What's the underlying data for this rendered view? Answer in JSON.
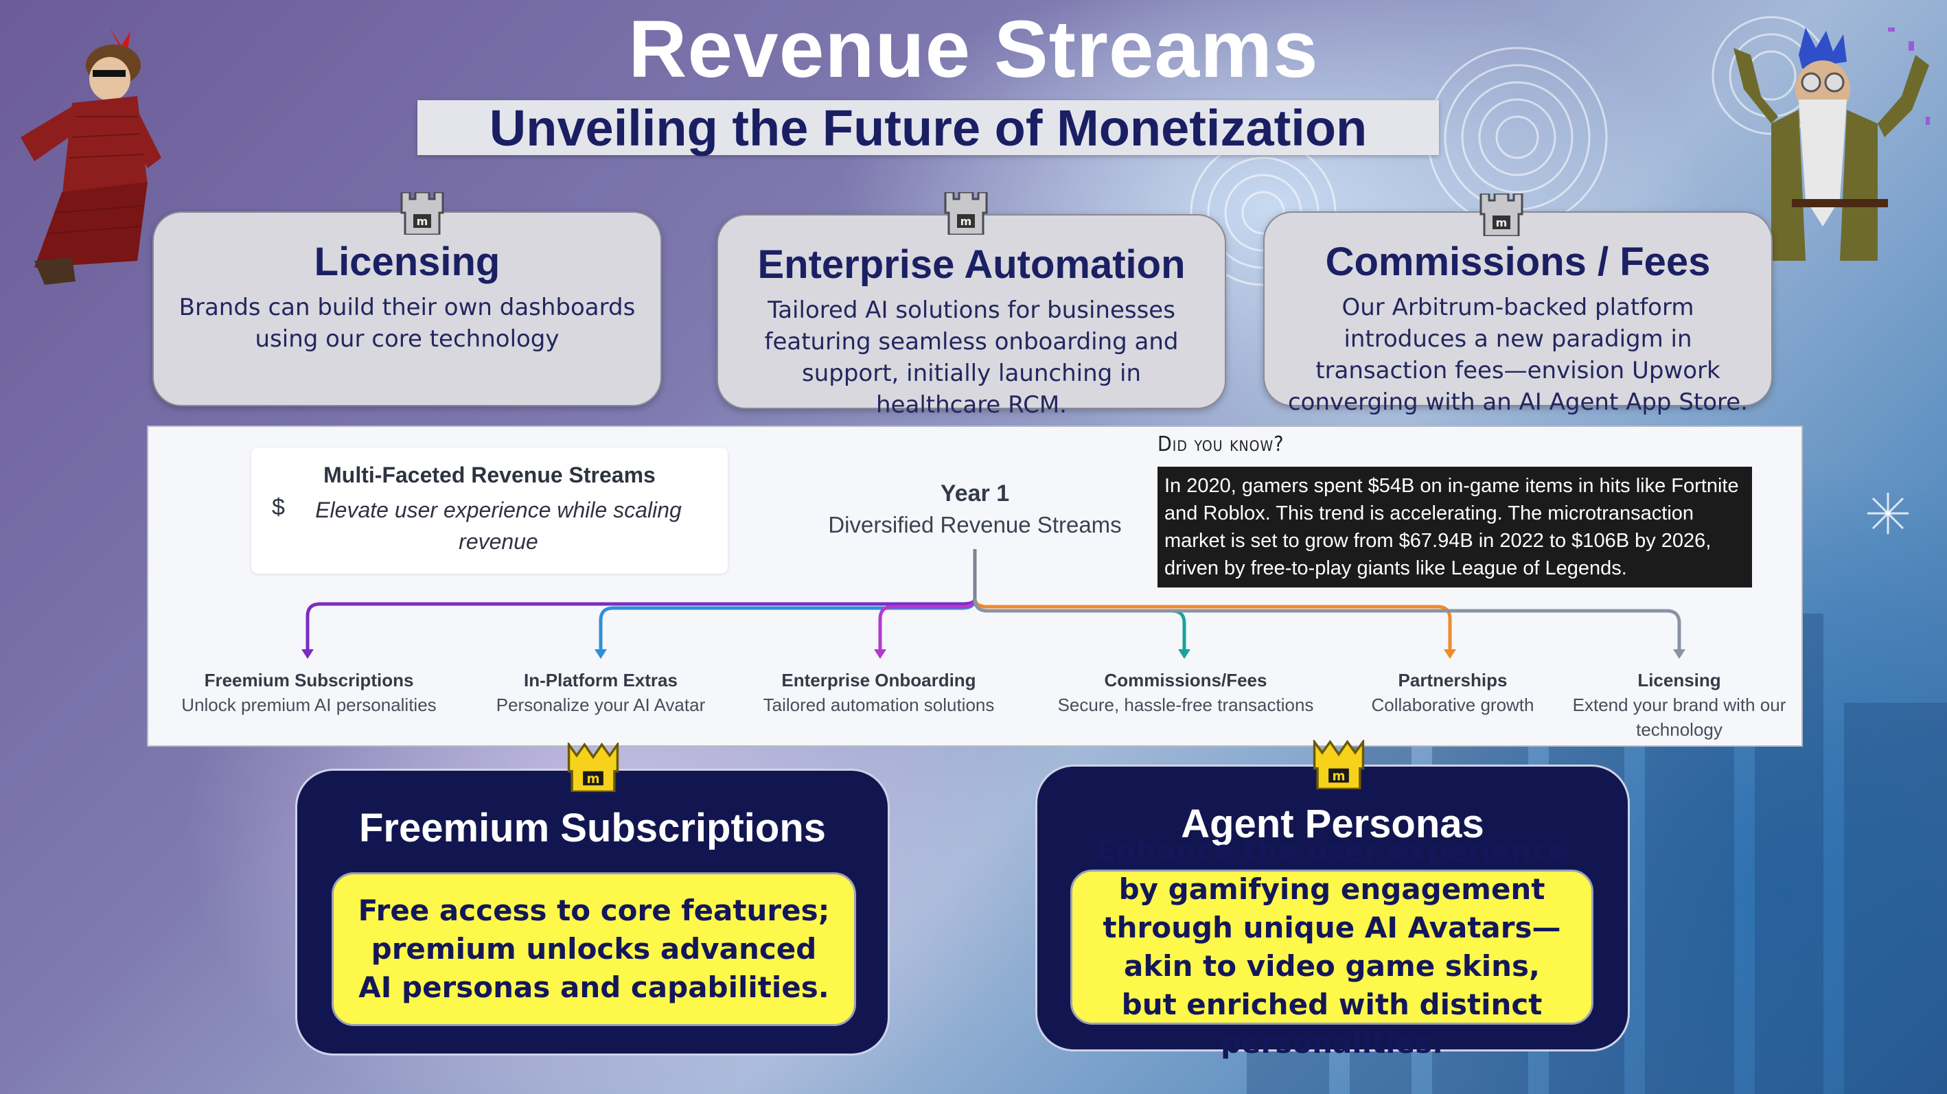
{
  "header": {
    "title": "Revenue Streams",
    "subtitle": "Unveiling the Future of Monetization"
  },
  "top_cards": [
    {
      "title": "Licensing",
      "body": "Brands can build their own dashboards using our core technology"
    },
    {
      "title": "Enterprise Automation",
      "body": "Tailored AI solutions for businesses featuring seamless onboarding and support, initially launching in healthcare RCM."
    },
    {
      "title": "Commissions / Fees",
      "body": "Our Arbitrum-backed platform introduces a new paradigm in transaction fees—envision Upwork converging with an AI Agent App Store."
    }
  ],
  "diagram": {
    "inset_title": "Multi-Faceted Revenue Streams",
    "inset_symbol": "$",
    "inset_subtitle": "Elevate  user experience while scaling revenue",
    "root_title": "Year 1",
    "root_subtitle": "Diversified Revenue Streams",
    "branches": [
      {
        "title": "Freemium Subscriptions",
        "desc": "Unlock premium AI personalities",
        "color": "#7b2cc4"
      },
      {
        "title": "In-Platform Extras",
        "desc": "Personalize your AI Avatar",
        "color": "#2f8fd8"
      },
      {
        "title": "Enterprise Onboarding",
        "desc": "Tailored automation solutions",
        "color": "#b23ad0"
      },
      {
        "title": "Commissions/Fees",
        "desc": "Secure, hassle-free transactions",
        "color": "#1aa39a"
      },
      {
        "title": "Partnerships",
        "desc": "Collaborative growth",
        "color": "#ee8a2c"
      },
      {
        "title": "Licensing",
        "desc": "Extend your brand with our technology",
        "color": "#8a93a3"
      }
    ]
  },
  "did_you_know": {
    "label": "Did you know?",
    "text": "In 2020, gamers spent $54B on in-game items in hits like Fortnite and Roblox. This trend is accelerating. The microtransaction market is set to grow from $67.94B in 2022 to $106B by 2026, driven by free-to-play giants like League of Legends."
  },
  "bottom_cards": [
    {
      "title": "Freemium Subscriptions",
      "body": "Free access to core features; premium unlocks advanced AI personas and capabilities."
    },
    {
      "title": "Agent Personas",
      "body": "Enhance the user experience by gamifying engagement through unique AI Avatars—akin to video game skins, but enriched with distinct personalities."
    }
  ],
  "icons": {
    "card_badge": "castle-tower-icon",
    "bottom_badge": "gold-crown-icon"
  },
  "colors": {
    "title_navy": "#1b2064",
    "highlight_yellow": "#fdf84a",
    "card_navy": "#121650"
  }
}
